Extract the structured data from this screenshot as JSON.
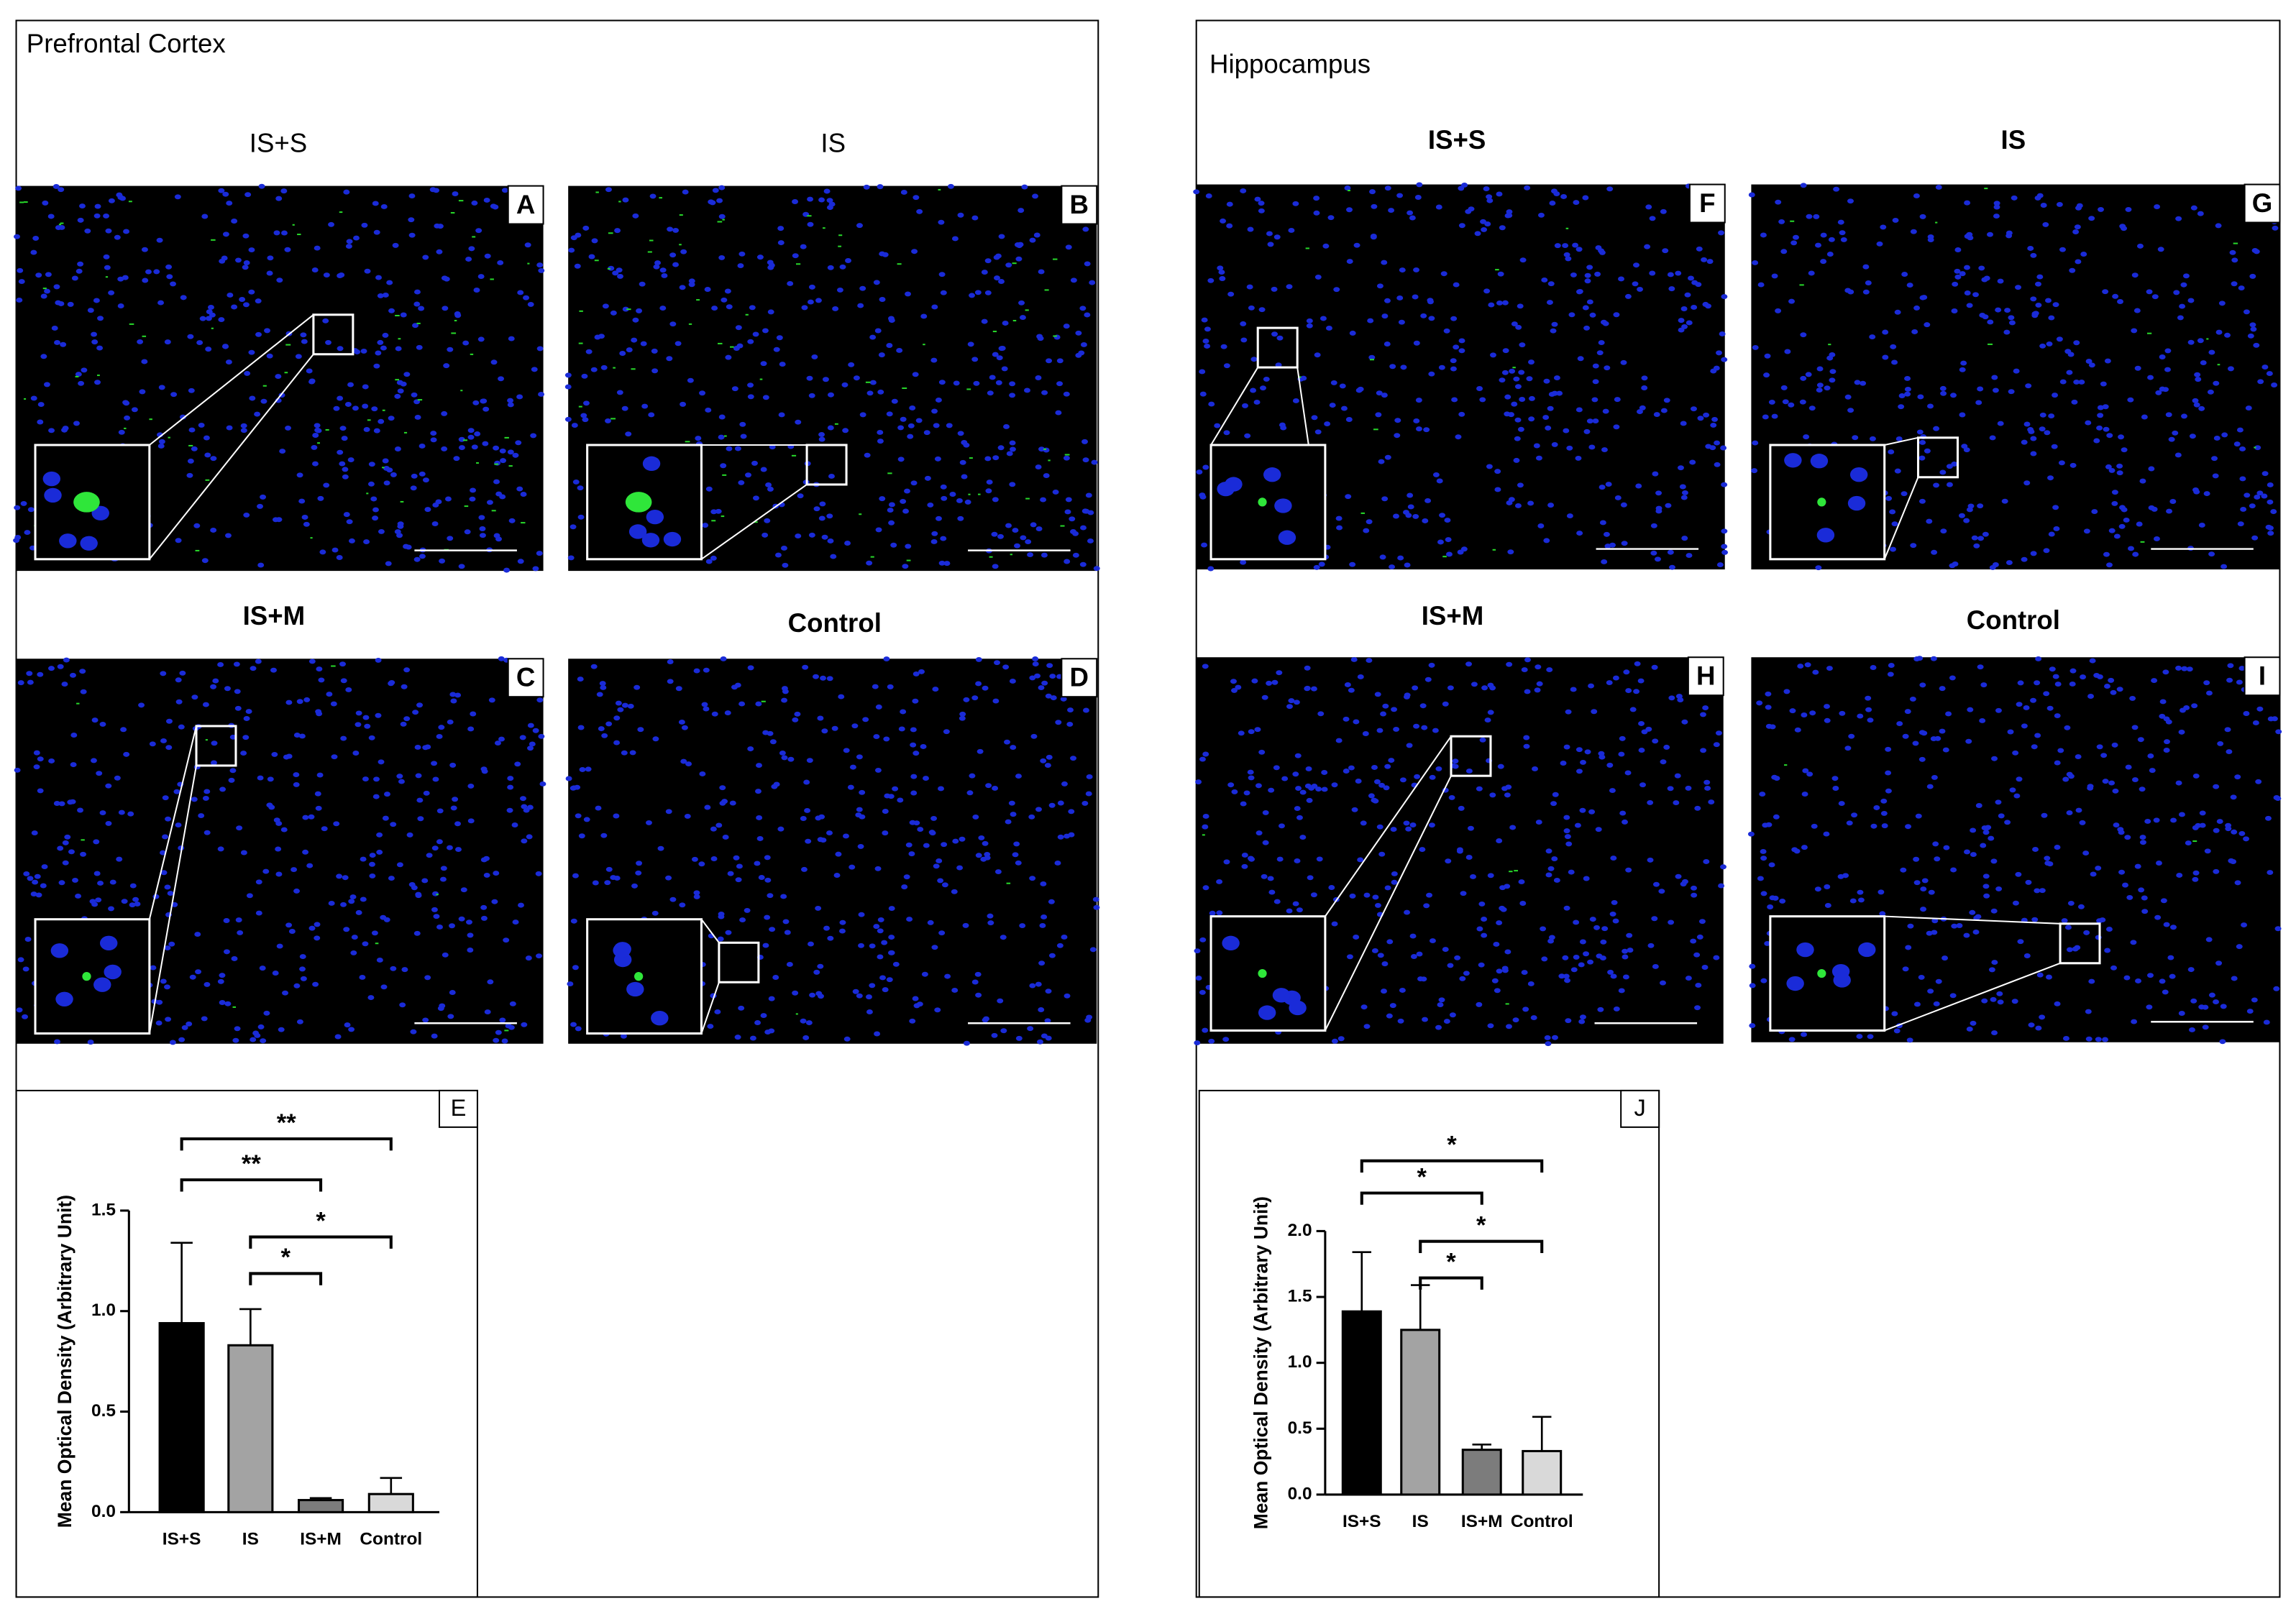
{
  "panels": [
    {
      "title": "Prefrontal Cortex",
      "images": [
        {
          "group": "IS+S",
          "letter": "A"
        },
        {
          "group": "IS",
          "letter": "B"
        },
        {
          "group": "IS+M",
          "letter": "C"
        },
        {
          "group": "Control",
          "letter": "D"
        }
      ]
    },
    {
      "title": "Hippocampus",
      "images": [
        {
          "group": "IS+S",
          "letter": "F"
        },
        {
          "group": "IS",
          "letter": "G"
        },
        {
          "group": "IS+M",
          "letter": "H"
        },
        {
          "group": "Control",
          "letter": "I"
        }
      ]
    }
  ],
  "chart_data": [
    {
      "type": "bar",
      "panel_label": "E",
      "ylabel": "Mean Optical Density (Arbitrary Unit)",
      "categories": [
        "IS+S",
        "IS",
        "IS+M",
        "Control"
      ],
      "values": [
        0.94,
        0.83,
        0.06,
        0.09
      ],
      "errors": [
        0.4,
        0.18,
        0.01,
        0.08
      ],
      "colors": [
        "#000000",
        "#a3a3a3",
        "#7c7c7c",
        "#d9d9d9"
      ],
      "ylim": [
        0,
        1.5
      ],
      "yticks": [
        {
          "value": 0,
          "label": "0.0"
        },
        {
          "value": 0.5,
          "label": "0.5"
        },
        {
          "value": 1,
          "label": "1.0"
        },
        {
          "value": 1.5,
          "label": "1.5"
        }
      ],
      "comparisons": [
        {
          "from": "IS+S",
          "to": "Control",
          "label": "**"
        },
        {
          "from": "IS+S",
          "to": "IS+M",
          "label": "**"
        },
        {
          "from": "IS",
          "to": "Control",
          "label": "*"
        },
        {
          "from": "IS",
          "to": "IS+M",
          "label": "*"
        }
      ]
    },
    {
      "type": "bar",
      "panel_label": "J",
      "ylabel": "Mean Optical Density (Arbitrary Unit)",
      "categories": [
        "IS+S",
        "IS",
        "IS+M",
        "Control"
      ],
      "values": [
        1.39,
        1.25,
        0.34,
        0.33
      ],
      "errors": [
        0.45,
        0.34,
        0.04,
        0.26
      ],
      "colors": [
        "#000000",
        "#a3a3a3",
        "#7c7c7c",
        "#d9d9d9"
      ],
      "ylim": [
        0,
        2
      ],
      "yticks": [
        {
          "value": 0,
          "label": "0.0"
        },
        {
          "value": 0.5,
          "label": "0.5"
        },
        {
          "value": 1,
          "label": "1.0"
        },
        {
          "value": 1.5,
          "label": "1.5"
        },
        {
          "value": 2,
          "label": "2.0"
        }
      ],
      "comparisons": [
        {
          "from": "IS+S",
          "to": "Control",
          "label": "*"
        },
        {
          "from": "IS+S",
          "to": "IS+M",
          "label": "*"
        },
        {
          "from": "IS",
          "to": "Control",
          "label": "*"
        },
        {
          "from": "IS",
          "to": "IS+M",
          "label": "*"
        }
      ]
    }
  ]
}
